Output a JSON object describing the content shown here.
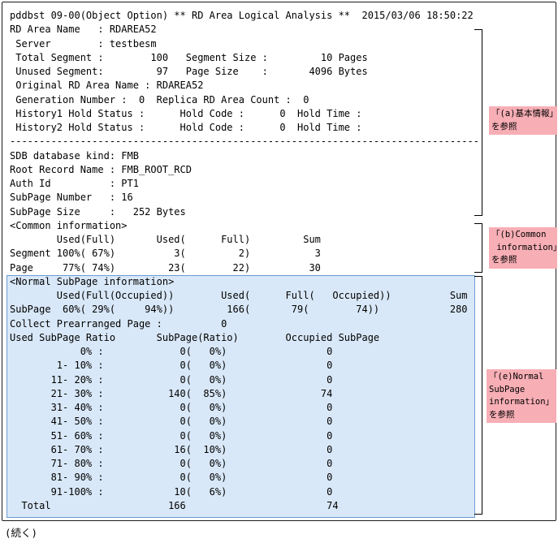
{
  "report": {
    "title": "pddbst 09-00(Object Option) ** RD Area Logical Analysis **  2015/03/06 18:50:22",
    "lines": [
      "pddbst 09-00(Object Option) ** RD Area Logical Analysis **  2015/03/06 18:50:22",
      "RD Area Name   : RDAREA52",
      " Server        : testbesm",
      " Total Segment :        100   Segment Size :         10 Pages",
      " Unused Segment:         97   Page Size    :       4096 Bytes",
      " Original RD Area Name : RDAREA52",
      " Generation Number :  0  Replica RD Area Count :  0",
      " History1 Hold Status :      Hold Code :      0  Hold Time :",
      " History2 Hold Status :      Hold Code :      0  Hold Time :",
      "--------------------------------------------------------------------------------",
      "SDB database kind: FMB",
      "Root Record Name : FMB_ROOT_RCD",
      "Auth Id          : PT1",
      "SubPage Number   : 16",
      "SubPage Size     :   252 Bytes",
      "<Common information>",
      "        Used(Full)       Used(      Full)         Sum",
      "Segment 100%( 67%)          3(         2)           3",
      "Page     77%( 74%)         23(        22)          30",
      "<Normal SubPage information>",
      "        Used(Full(Occupied))        Used(      Full(   Occupied))          Sum",
      "SubPage  60%( 29%(     94%))         166(       79(        74))            280",
      "Collect Prearranged Page :          0",
      "Used SubPage Ratio       SubPage(Ratio)        Occupied SubPage",
      "            0% :             0(   0%)                 0",
      "        1- 10% :             0(   0%)                 0",
      "       11- 20% :             0(   0%)                 0",
      "       21- 30% :           140(  85%)                74",
      "       31- 40% :             0(   0%)                 0",
      "       41- 50% :             0(   0%)                 0",
      "       51- 60% :             0(   0%)                 0",
      "       61- 70% :            16(  10%)                 0",
      "       71- 80% :             0(   0%)                 0",
      "       81- 90% :             0(   0%)                 0",
      "       91-100% :            10(   6%)                 0",
      "  Total                    166                        74"
    ]
  },
  "annotations": {
    "a": {
      "lines": [
        "「(a)基本情報」",
        "を参照"
      ]
    },
    "b": {
      "lines": [
        "「(b)Common",
        " information」",
        "を参照"
      ]
    },
    "e": {
      "lines": [
        "「(e)Normal",
        "SubPage",
        "information」",
        "を参照"
      ]
    }
  },
  "continued_label": "(続く)",
  "colors": {
    "annotation_bg": "#f7aeb5",
    "highlight_fill": "#d9e8f8",
    "highlight_border": "#6b9bd2",
    "frame_border": "#1c1c1c",
    "text": "#000000"
  }
}
